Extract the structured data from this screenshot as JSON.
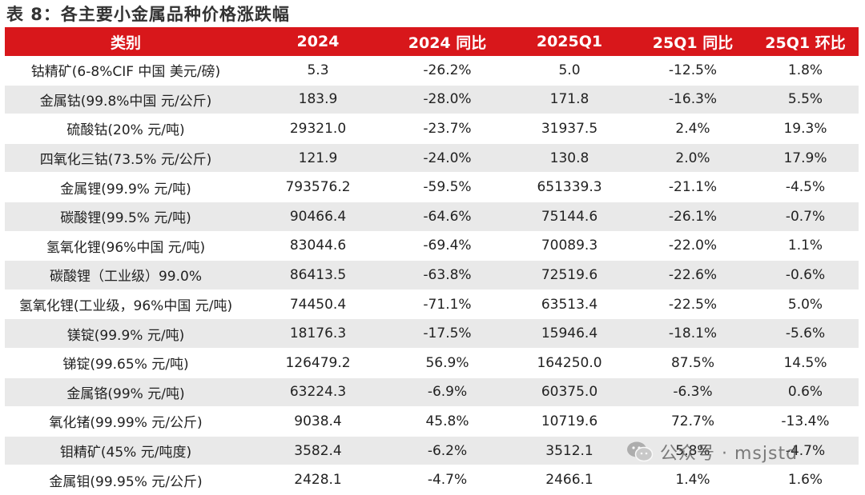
{
  "title": "表 8：各主要小金属品种价格涨跌幅",
  "table": {
    "headers": [
      "类别",
      "2024",
      "2024 同比",
      "2025Q1",
      "25Q1 同比",
      "25Q1 环比"
    ],
    "rows": [
      [
        "钴精矿(6-8%CIF 中国  美元/磅)",
        "5.3",
        "-26.2%",
        "5.0",
        "-12.5%",
        "1.8%"
      ],
      [
        "金属钴(99.8%中国  元/公斤)",
        "183.9",
        "-28.0%",
        "171.8",
        "-16.3%",
        "5.5%"
      ],
      [
        "硫酸钴(20%  元/吨)",
        "29321.0",
        "-23.7%",
        "31937.5",
        "2.4%",
        "19.3%"
      ],
      [
        "四氧化三钴(73.5%  元/公斤)",
        "121.9",
        "-24.0%",
        "130.8",
        "2.0%",
        "17.9%"
      ],
      [
        "金属锂(99.9%  元/吨)",
        "793576.2",
        "-59.5%",
        "651339.3",
        "-21.1%",
        "-4.5%"
      ],
      [
        "碳酸锂(99.5%  元/吨)",
        "90466.4",
        "-64.6%",
        "75144.6",
        "-26.1%",
        "-0.7%"
      ],
      [
        "氢氧化锂(96%中国  元/吨)",
        "83044.6",
        "-69.4%",
        "70089.3",
        "-22.0%",
        "1.1%"
      ],
      [
        "碳酸锂（工业级）99.0%",
        "86413.5",
        "-63.8%",
        "72519.6",
        "-22.6%",
        "-0.6%"
      ],
      [
        "氢氧化锂(工业级，96%中国  元/吨)",
        "74450.4",
        "-71.1%",
        "63513.4",
        "-22.5%",
        "5.0%"
      ],
      [
        "镁锭(99.9%  元/吨)",
        "18176.3",
        "-17.5%",
        "15946.4",
        "-18.1%",
        "-5.6%"
      ],
      [
        "锑锭(99.65%  元/吨)",
        "126479.2",
        "56.9%",
        "164250.0",
        "87.5%",
        "14.5%"
      ],
      [
        "金属铬(99%  元/吨)",
        "63224.3",
        "-6.9%",
        "60375.0",
        "-6.3%",
        "0.6%"
      ],
      [
        "氧化锗(99.99%  元/公斤)",
        "9038.4",
        "45.8%",
        "10719.6",
        "72.7%",
        "-13.4%"
      ],
      [
        "钼精矿(45%  元/吨度)",
        "3582.4",
        "-6.2%",
        "3512.1",
        "5.8%",
        "-4.7%"
      ],
      [
        "金属钼(99.95%  元/公斤)",
        "2428.1",
        "-4.7%",
        "2466.1",
        "1.4%",
        "1.6%"
      ]
    ]
  },
  "watermark": {
    "text": "公众号 · msjstd",
    "icon": "wechat-icon"
  },
  "colors": {
    "header_bg": "#d8171b",
    "stripe": "#e9e9e9",
    "header_text": "#ffffff"
  }
}
